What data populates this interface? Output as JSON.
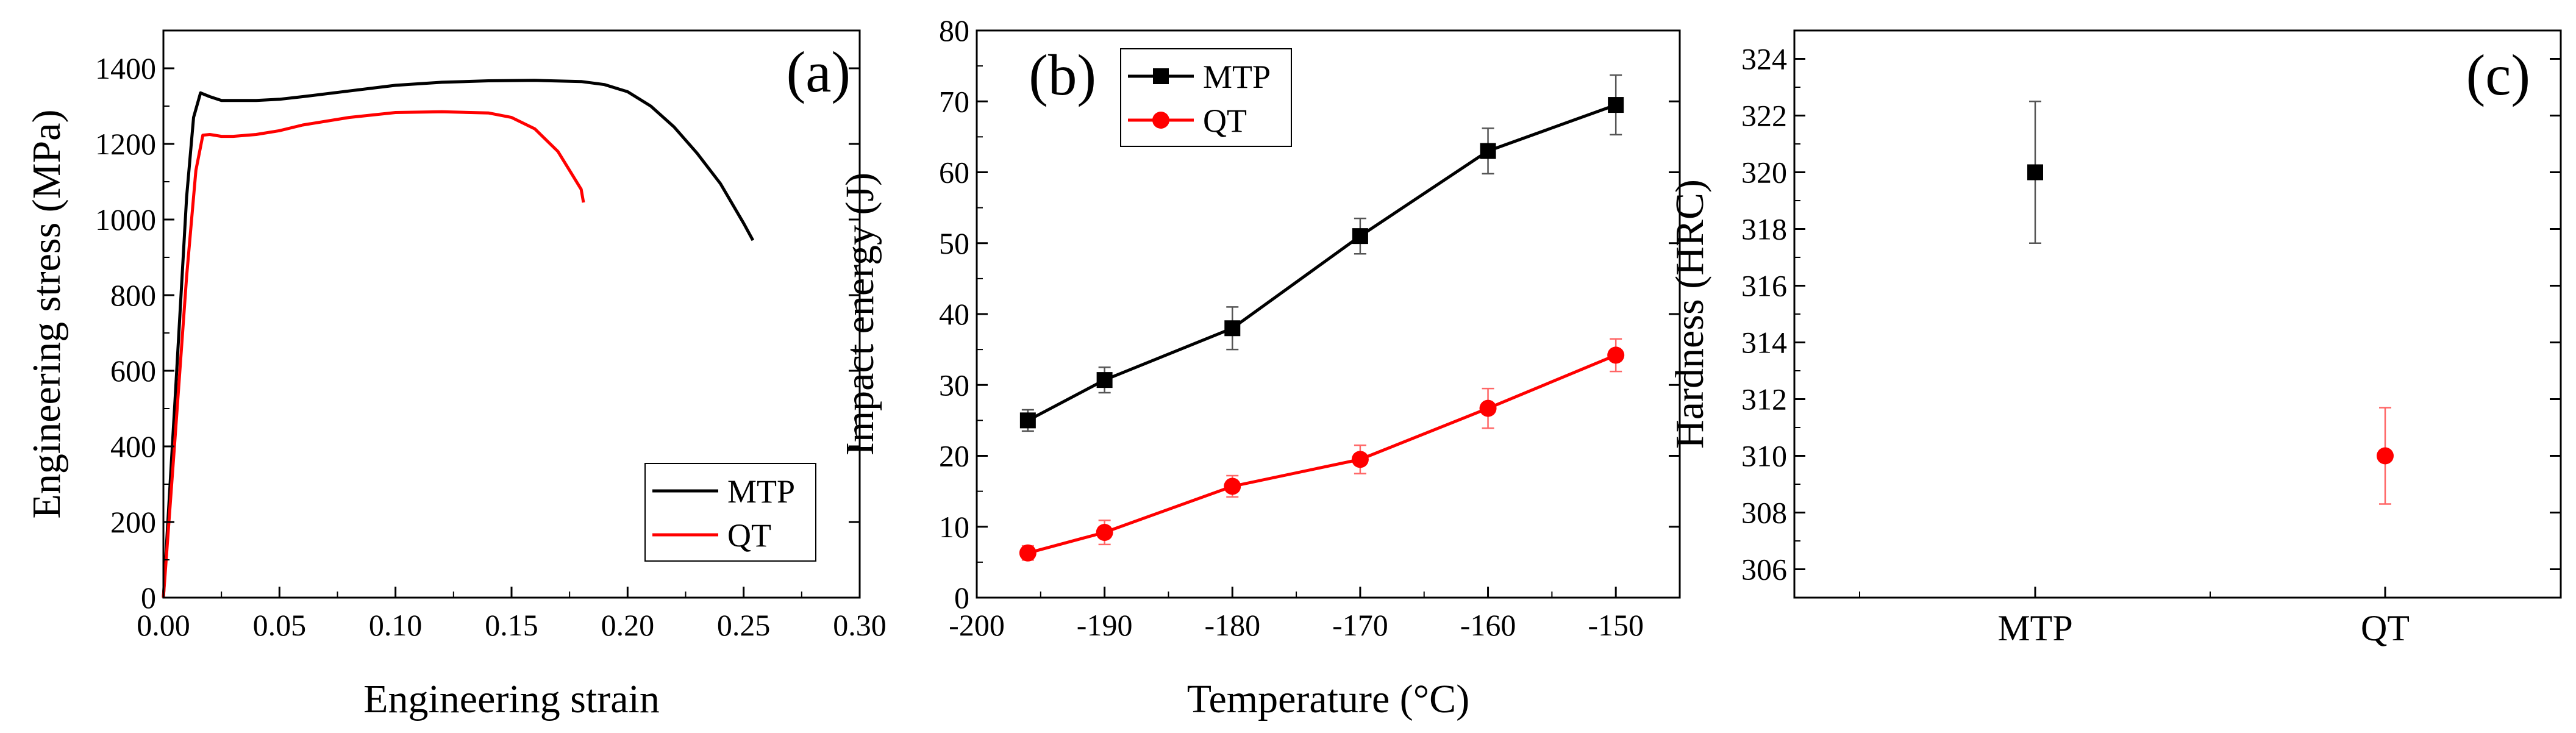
{
  "colors": {
    "mtp": "#000000",
    "qt": "#ff0000",
    "axis": "#000000",
    "errorbar_mtp": "#555555",
    "errorbar_qt": "#ff6666"
  },
  "chart_data": [
    {
      "panel_label": "(a)",
      "type": "line",
      "xlabel": "Engineering strain",
      "ylabel": "Engineering stress (MPa)",
      "xlim": [
        0,
        0.3
      ],
      "ylim": [
        0,
        1500
      ],
      "xticks": [
        "0.00",
        "0.05",
        "0.10",
        "0.15",
        "0.20",
        "0.25",
        "0.30"
      ],
      "yticks": [
        "0",
        "200",
        "400",
        "600",
        "800",
        "1000",
        "1200",
        "1400"
      ],
      "legend_position": "bottom-right",
      "series": [
        {
          "name": "MTP",
          "x": [
            0,
            0.005,
            0.01,
            0.013,
            0.016,
            0.02,
            0.025,
            0.03,
            0.04,
            0.05,
            0.06,
            0.08,
            0.1,
            0.12,
            0.14,
            0.16,
            0.18,
            0.19,
            0.2,
            0.21,
            0.22,
            0.23,
            0.24,
            0.25,
            0.254
          ],
          "y": [
            0,
            520,
            1060,
            1270,
            1335,
            1325,
            1315,
            1315,
            1315,
            1318,
            1325,
            1340,
            1355,
            1363,
            1367,
            1368,
            1365,
            1357,
            1338,
            1300,
            1245,
            1175,
            1095,
            990,
            945
          ]
        },
        {
          "name": "QT",
          "x": [
            0,
            0.005,
            0.01,
            0.014,
            0.017,
            0.02,
            0.025,
            0.03,
            0.04,
            0.05,
            0.06,
            0.08,
            0.1,
            0.12,
            0.14,
            0.15,
            0.16,
            0.17,
            0.175,
            0.18,
            0.181
          ],
          "y": [
            0,
            420,
            850,
            1130,
            1223,
            1225,
            1220,
            1220,
            1225,
            1235,
            1250,
            1270,
            1283,
            1285,
            1282,
            1270,
            1240,
            1180,
            1130,
            1080,
            1045
          ]
        }
      ]
    },
    {
      "panel_label": "(b)",
      "type": "line",
      "xlabel": "Temperature (°C)",
      "ylabel": "Impact energy (J)",
      "xlim": [
        -200,
        -145
      ],
      "ylim": [
        0,
        80
      ],
      "xticks": [
        "-200",
        "-190",
        "-180",
        "-170",
        "-160",
        "-150"
      ],
      "yticks": [
        "0",
        "10",
        "20",
        "30",
        "40",
        "50",
        "60",
        "70",
        "80"
      ],
      "legend_position": "top-left",
      "x": [
        -196,
        -190,
        -180,
        -170,
        -160,
        -150
      ],
      "series": [
        {
          "name": "MTP",
          "marker": "square",
          "values": [
            25,
            30.7,
            38,
            51,
            63,
            69.5
          ],
          "errors": [
            1.5,
            1.8,
            3,
            2.5,
            3.2,
            4.2
          ]
        },
        {
          "name": "QT",
          "marker": "circle",
          "values": [
            6.3,
            9.2,
            15.7,
            19.5,
            26.7,
            34.2
          ],
          "errors": [
            1.0,
            1.7,
            1.5,
            2.0,
            2.8,
            2.3
          ]
        }
      ]
    },
    {
      "panel_label": "(c)",
      "type": "scatter",
      "xlabel": "",
      "ylabel": "Hardness (HRC)",
      "ylim": [
        305,
        325
      ],
      "categories": [
        "MTP",
        "QT"
      ],
      "yticks": [
        "306",
        "308",
        "310",
        "312",
        "314",
        "316",
        "318",
        "320",
        "322",
        "324"
      ],
      "series": [
        {
          "name": "MTP",
          "marker": "square",
          "values": [
            320
          ],
          "errors": [
            2.5
          ]
        },
        {
          "name": "QT",
          "marker": "circle",
          "values": [
            310
          ],
          "errors": [
            1.7
          ]
        }
      ]
    }
  ]
}
